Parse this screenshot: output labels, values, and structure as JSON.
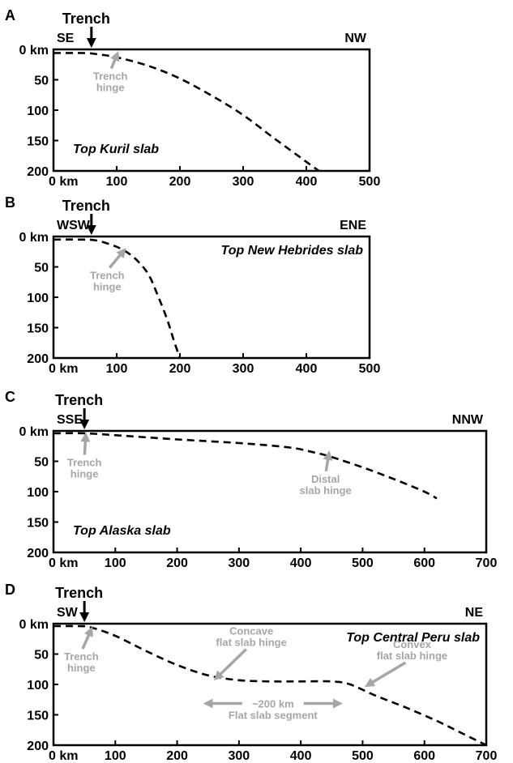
{
  "chart_data": [
    {
      "type": "line",
      "panel_label": "A",
      "title": "Top Kuril slab",
      "trench_label": "Trench",
      "trench_x": 60,
      "left_direction": "SE",
      "right_direction": "NW",
      "xlim": [
        0,
        500
      ],
      "ylim": [
        0,
        200
      ],
      "x_tick_labels": [
        "0 km",
        "100",
        "200",
        "300",
        "400",
        "500"
      ],
      "y_tick_labels": [
        "0 km",
        "50",
        "100",
        "150",
        "200"
      ],
      "series": [
        {
          "x": [
            0,
            50,
            70,
            100,
            150,
            200,
            250,
            300,
            350,
            400,
            420
          ],
          "y": [
            6,
            6,
            8,
            13,
            27,
            48,
            76,
            108,
            147,
            185,
            200
          ]
        }
      ],
      "annotations": [
        {
          "lines": [
            "Trench",
            "hinge"
          ],
          "x": 90,
          "y": 50,
          "arrow_to": [
            100,
            10
          ]
        }
      ]
    },
    {
      "type": "line",
      "panel_label": "B",
      "title": "Top New Hebrides slab",
      "trench_label": "Trench",
      "trench_x": 60,
      "left_direction": "WSW",
      "right_direction": "ENE",
      "xlim": [
        0,
        500
      ],
      "ylim": [
        0,
        200
      ],
      "x_tick_labels": [
        "0 km",
        "100",
        "200",
        "300",
        "400",
        "500"
      ],
      "y_tick_labels": [
        "0 km",
        "50",
        "100",
        "150",
        "200"
      ],
      "series": [
        {
          "x": [
            0,
            40,
            65,
            90,
            110,
            130,
            150,
            165,
            180,
            190,
            200
          ],
          "y": [
            5,
            5,
            6,
            13,
            22,
            37,
            62,
            97,
            137,
            170,
            200
          ]
        }
      ],
      "annotations": [
        {
          "lines": [
            "Trench",
            "hinge"
          ],
          "x": 85,
          "y": 70,
          "arrow_to": [
            110,
            25
          ]
        }
      ]
    },
    {
      "type": "line",
      "panel_label": "C",
      "title": "Top Alaska slab",
      "trench_label": "Trench",
      "trench_x": 50,
      "left_direction": "SSE",
      "right_direction": "NNW",
      "xlim": [
        0,
        700
      ],
      "ylim": [
        0,
        200
      ],
      "x_tick_labels": [
        "0 km",
        "100",
        "200",
        "300",
        "400",
        "500",
        "600",
        "700"
      ],
      "y_tick_labels": [
        "0 km",
        "50",
        "100",
        "150",
        "200"
      ],
      "series": [
        {
          "x": [
            0,
            50,
            100,
            200,
            300,
            380,
            420,
            450,
            500,
            550,
            600,
            620
          ],
          "y": [
            4,
            4,
            7,
            14,
            20,
            27,
            35,
            43,
            60,
            79,
            100,
            111
          ]
        }
      ],
      "annotations": [
        {
          "lines": [
            "Trench",
            "hinge"
          ],
          "x": 50,
          "y": 58,
          "arrow_to": [
            52,
            10
          ]
        },
        {
          "lines": [
            "Distal",
            "slab hinge"
          ],
          "x": 440,
          "y": 85,
          "arrow_to": [
            445,
            40
          ]
        }
      ]
    },
    {
      "type": "line",
      "panel_label": "D",
      "title": "Top Central Peru slab",
      "trench_label": "Trench",
      "trench_x": 50,
      "left_direction": "SW",
      "right_direction": "NE",
      "xlim": [
        0,
        700
      ],
      "ylim": [
        0,
        200
      ],
      "x_tick_labels": [
        "0 km",
        "100",
        "200",
        "300",
        "400",
        "500",
        "600",
        "700"
      ],
      "y_tick_labels": [
        "0 km",
        "50",
        "100",
        "150",
        "200"
      ],
      "series": [
        {
          "x": [
            0,
            40,
            60,
            100,
            150,
            200,
            250,
            300,
            350,
            400,
            450,
            480,
            520,
            570,
            620,
            660,
            700
          ],
          "y": [
            4,
            4,
            6,
            20,
            45,
            68,
            85,
            93,
            95,
            95,
            95,
            100,
            118,
            138,
            160,
            180,
            200
          ]
        }
      ],
      "annotations": [
        {
          "lines": [
            "Trench",
            "hinge"
          ],
          "x": 45,
          "y": 60,
          "arrow_to": [
            60,
            12
          ]
        },
        {
          "lines": [
            "Concave",
            "flat slab hinge"
          ],
          "x": 320,
          "y": 18,
          "arrow_to": [
            265,
            88
          ]
        },
        {
          "lines": [
            "Convex",
            "flat slab hinge"
          ],
          "x": 580,
          "y": 40,
          "arrow_to": [
            510,
            100
          ]
        },
        {
          "lines": [
            "~200 km",
            "Flat slab segment"
          ],
          "x": 355,
          "y": 138,
          "arrow_span": [
            250,
            460
          ]
        }
      ]
    }
  ]
}
